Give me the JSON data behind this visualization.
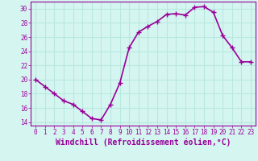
{
  "x": [
    0,
    1,
    2,
    3,
    4,
    5,
    6,
    7,
    8,
    9,
    10,
    11,
    12,
    13,
    14,
    15,
    16,
    17,
    18,
    19,
    20,
    21,
    22,
    23
  ],
  "y": [
    20,
    19,
    18,
    17,
    16.5,
    15.5,
    14.5,
    14.3,
    16.5,
    19.5,
    24.5,
    26.7,
    27.5,
    28.2,
    29.2,
    29.3,
    29.1,
    30.2,
    30.3,
    29.5,
    26.2,
    24.5,
    22.5,
    22.5
  ],
  "line_color": "#990099",
  "marker": "+",
  "marker_size": 4,
  "xlabel": "Windchill (Refroidissement éolien,°C)",
  "xlabel_fontsize": 7,
  "ylabel": "",
  "title": "",
  "xlim": [
    -0.5,
    23.5
  ],
  "ylim": [
    13.5,
    31.0
  ],
  "yticks": [
    14,
    16,
    18,
    20,
    22,
    24,
    26,
    28,
    30
  ],
  "xticks": [
    0,
    1,
    2,
    3,
    4,
    5,
    6,
    7,
    8,
    9,
    10,
    11,
    12,
    13,
    14,
    15,
    16,
    17,
    18,
    19,
    20,
    21,
    22,
    23
  ],
  "background_color": "#d5f5f0",
  "grid_color": "#b8e8e0",
  "tick_color": "#990099",
  "tick_fontsize": 5.5,
  "linewidth": 1.2
}
